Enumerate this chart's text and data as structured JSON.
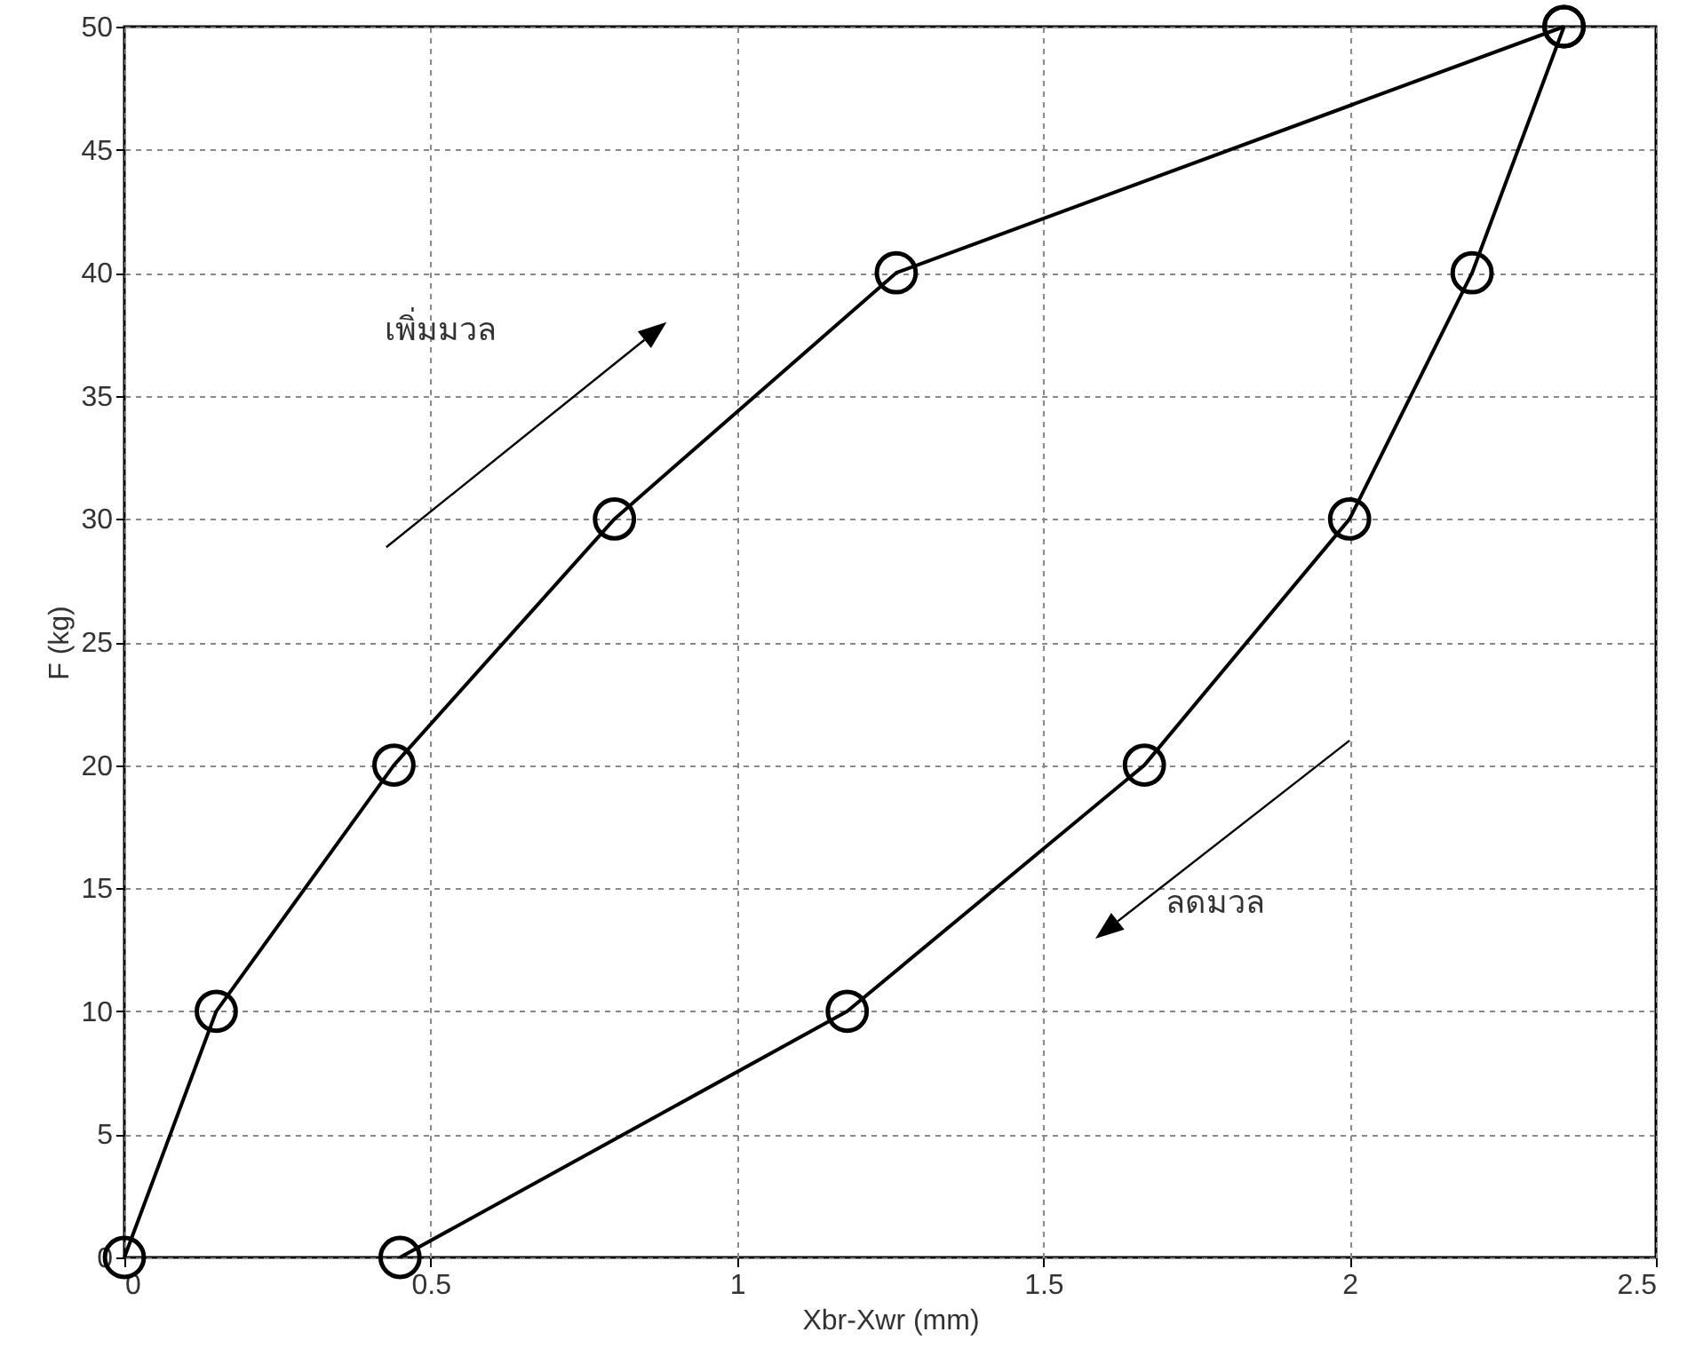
{
  "chart_data": {
    "type": "line",
    "xlabel": "Xbr-Xwr (mm)",
    "ylabel": "F (kg)",
    "series": [
      {
        "color": "#000000",
        "x": [
          0,
          0.15,
          0.44,
          0.8,
          1.26,
          2.35
        ],
        "values": [
          0,
          10,
          20,
          30,
          40,
          50
        ]
      },
      {
        "color": "#000000",
        "x": [
          2.35,
          2.2,
          2.0,
          1.665,
          1.18,
          0.45
        ],
        "values": [
          50,
          40,
          30,
          20,
          10,
          0
        ]
      }
    ],
    "xlim": [
      0,
      2.5
    ],
    "xticks": [
      0,
      0.5,
      1,
      1.5,
      2,
      2.5
    ],
    "ylim": [
      0,
      50
    ],
    "yticks": [
      0,
      5,
      10,
      15,
      20,
      25,
      30,
      35,
      40,
      45,
      50
    ],
    "grid": true,
    "marker": "circle",
    "line_style": "solid",
    "annotations": [
      "เพิ่มมวล",
      "ลดมวล"
    ]
  }
}
